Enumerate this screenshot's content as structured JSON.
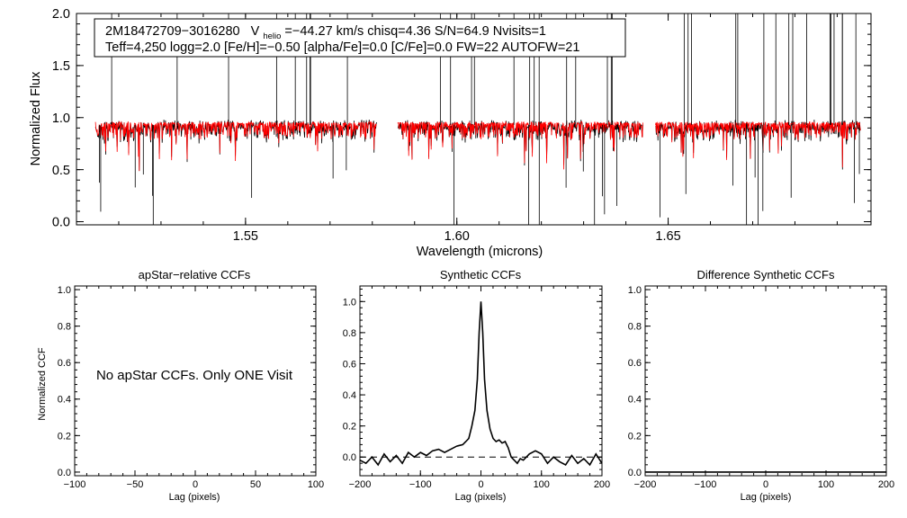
{
  "chart_data": [
    {
      "type": "line",
      "id": "spectrum",
      "xlabel": "Wavelength (microns)",
      "ylabel": "Normalized Flux",
      "xlim": [
        1.51,
        1.698
      ],
      "ylim": [
        -0.03,
        2.0
      ],
      "xticks": [
        1.55,
        1.6,
        1.65
      ],
      "xtick_labels": [
        "1.55",
        "1.60",
        "1.65"
      ],
      "yticks": [
        0.0,
        0.5,
        1.0,
        1.5,
        2.0
      ],
      "ytick_labels": [
        "0.0",
        "0.5",
        "1.0",
        "1.5",
        "2.0"
      ],
      "annotation": {
        "line1_star": "2M18472709−3016280",
        "line1_v": "V",
        "line1_sub": "helio",
        "line1_rest": "=−44.27 km/s  chisq=4.36  S/N=64.9  Nvisits=1",
        "line2": "Teff=4,250 logg=2.0 [Fe/H]=−0.50 [alpha/Fe]=0.0 [C/Fe]=0.0 FW=22 AUTOFW=21"
      },
      "chip_ranges": [
        [
          1.5145,
          1.581
        ],
        [
          1.586,
          1.644
        ],
        [
          1.647,
          1.6955
        ]
      ],
      "series": [
        {
          "name": "observed",
          "color": "#000000",
          "continuum": 0.93
        },
        {
          "name": "synthetic",
          "color": "#ff0000",
          "continuum": 0.95
        }
      ]
    },
    {
      "type": "line",
      "id": "apstar-ccf",
      "title": "apStar−relative CCFs",
      "xlabel": "Lag (pixels)",
      "ylabel": "Normalized CCF",
      "xlim": [
        -100,
        100
      ],
      "ylim": [
        -0.02,
        1.02
      ],
      "xticks": [
        -100,
        -50,
        0,
        50,
        100
      ],
      "xtick_labels": [
        "−100",
        "−50",
        "0",
        "50",
        "100"
      ],
      "yticks": [
        0.0,
        0.2,
        0.4,
        0.6,
        0.8,
        1.0
      ],
      "ytick_labels": [
        "0.0",
        "0.2",
        "0.4",
        "0.6",
        "0.8",
        "1.0"
      ],
      "message": "No apStar CCFs.  Only ONE Visit",
      "series": []
    },
    {
      "type": "line",
      "id": "synthetic-ccf",
      "title": "Synthetic CCFs",
      "xlabel": "Lag (pixels)",
      "ylabel": "",
      "xlim": [
        -200,
        200
      ],
      "ylim": [
        -0.12,
        1.1
      ],
      "xticks": [
        -200,
        -100,
        0,
        100,
        200
      ],
      "xtick_labels": [
        "−200",
        "−100",
        "0",
        "100",
        "200"
      ],
      "yticks": [
        0.0,
        0.2,
        0.4,
        0.6,
        0.8,
        1.0
      ],
      "ytick_labels": [
        "0.0",
        "0.2",
        "0.4",
        "0.6",
        "0.8",
        "1.0"
      ],
      "baseline": 0.0,
      "series": [
        {
          "name": "ccf",
          "x": [
            -200,
            -190,
            -180,
            -170,
            -160,
            -150,
            -140,
            -130,
            -120,
            -110,
            -100,
            -90,
            -80,
            -70,
            -60,
            -50,
            -40,
            -30,
            -25,
            -20,
            -15,
            -10,
            -6,
            -3,
            0,
            3,
            6,
            10,
            15,
            20,
            25,
            30,
            35,
            40,
            45,
            50,
            55,
            60,
            65,
            70,
            80,
            90,
            100,
            110,
            120,
            130,
            140,
            150,
            160,
            170,
            180,
            190,
            200
          ],
          "y": [
            -0.02,
            -0.04,
            0.0,
            -0.05,
            0.02,
            -0.03,
            0.01,
            -0.04,
            0.03,
            0.0,
            0.03,
            0.01,
            0.04,
            0.05,
            0.03,
            0.05,
            0.07,
            0.08,
            0.1,
            0.12,
            0.2,
            0.3,
            0.5,
            0.8,
            1.0,
            0.8,
            0.5,
            0.3,
            0.18,
            0.12,
            0.1,
            0.11,
            0.09,
            0.1,
            0.06,
            0.0,
            -0.02,
            -0.04,
            -0.01,
            -0.02,
            0.02,
            0.04,
            0.02,
            -0.04,
            0.0,
            -0.03,
            -0.05,
            0.01,
            -0.04,
            -0.01,
            -0.05,
            0.02,
            -0.04
          ]
        }
      ]
    },
    {
      "type": "line",
      "id": "difference-ccf",
      "title": "Difference Synthetic CCFs",
      "xlabel": "Lag (pixels)",
      "ylabel": "",
      "xlim": [
        -200,
        200
      ],
      "ylim": [
        -0.02,
        1.02
      ],
      "xticks": [
        -200,
        -100,
        0,
        100,
        200
      ],
      "xtick_labels": [
        "−200",
        "−100",
        "0",
        "100",
        "200"
      ],
      "yticks": [
        0.0,
        0.2,
        0.4,
        0.6,
        0.8,
        1.0
      ],
      "ytick_labels": [
        "0.0",
        "0.2",
        "0.4",
        "0.6",
        "0.8",
        "1.0"
      ],
      "series": [
        {
          "name": "difference",
          "x": [
            -200,
            200
          ],
          "y": [
            0.0,
            0.0
          ]
        }
      ]
    }
  ]
}
